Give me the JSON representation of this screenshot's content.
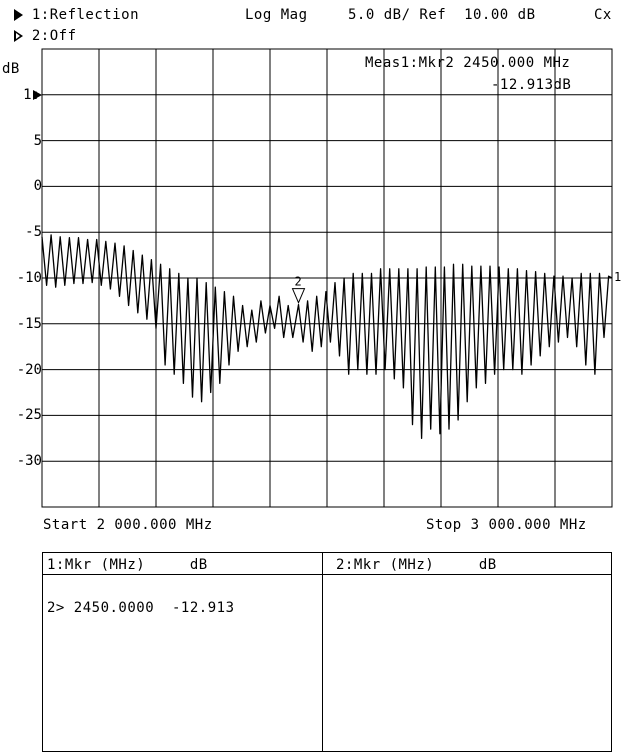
{
  "header": {
    "ch1": "1:Reflection",
    "ch2": "2:Off",
    "format": "Log Mag",
    "scale": "5.0 dB/ Ref  10.00 dB",
    "cx": "Cx"
  },
  "axis": {
    "unit": "dB",
    "ref_label": "1:",
    "ticks": [
      "5",
      "0",
      "-5",
      "-10",
      "-15",
      "-20",
      "-25",
      "-30"
    ]
  },
  "measurement": {
    "line1": "Meas1:Mkr2 2450.000 MHz",
    "line2": "-12.913dB"
  },
  "sweep": {
    "start": "Start 2 000.000 MHz",
    "stop": "Stop 3 000.000 MHz"
  },
  "marker_table": {
    "ch1_header": "1:Mkr (MHz)     dB",
    "ch2_header": "2:Mkr (MHz)     dB",
    "ch1_rows": [
      "2> 2450.0000  -12.913"
    ]
  },
  "chart_data": {
    "type": "line",
    "xlim": [
      2000,
      3000
    ],
    "ylim": [
      -35,
      15
    ],
    "reference_level": 10,
    "grid": true,
    "marker": {
      "label": "2",
      "x": 2450,
      "y": -12.913
    },
    "end_label": "1",
    "series": [
      {
        "values": [
          [
            2000,
            -5.5
          ],
          [
            2008,
            -10.8
          ],
          [
            2016,
            -5.3
          ],
          [
            2024,
            -11.0
          ],
          [
            2032,
            -5.5
          ],
          [
            2040,
            -10.8
          ],
          [
            2048,
            -5.6
          ],
          [
            2056,
            -10.6
          ],
          [
            2064,
            -5.6
          ],
          [
            2072,
            -10.6
          ],
          [
            2080,
            -5.8
          ],
          [
            2088,
            -10.5
          ],
          [
            2096,
            -5.8
          ],
          [
            2104,
            -10.8
          ],
          [
            2112,
            -6.0
          ],
          [
            2120,
            -11.2
          ],
          [
            2128,
            -6.2
          ],
          [
            2136,
            -12.0
          ],
          [
            2144,
            -6.5
          ],
          [
            2152,
            -13.0
          ],
          [
            2160,
            -7.0
          ],
          [
            2168,
            -13.8
          ],
          [
            2176,
            -7.5
          ],
          [
            2184,
            -14.5
          ],
          [
            2192,
            -8.0
          ],
          [
            2200,
            -15.5
          ],
          [
            2208,
            -8.5
          ],
          [
            2216,
            -19.5
          ],
          [
            2224,
            -9.0
          ],
          [
            2232,
            -20.5
          ],
          [
            2240,
            -9.5
          ],
          [
            2248,
            -21.5
          ],
          [
            2256,
            -10.0
          ],
          [
            2264,
            -23.0
          ],
          [
            2272,
            -10.0
          ],
          [
            2280,
            -23.5
          ],
          [
            2288,
            -10.5
          ],
          [
            2296,
            -22.5
          ],
          [
            2304,
            -11.0
          ],
          [
            2312,
            -21.5
          ],
          [
            2320,
            -11.5
          ],
          [
            2328,
            -19.5
          ],
          [
            2336,
            -12.0
          ],
          [
            2344,
            -18.0
          ],
          [
            2352,
            -13.0
          ],
          [
            2360,
            -17.5
          ],
          [
            2368,
            -13.5
          ],
          [
            2376,
            -17.0
          ],
          [
            2384,
            -12.5
          ],
          [
            2392,
            -16.0
          ],
          [
            2400,
            -13.0
          ],
          [
            2408,
            -15.5
          ],
          [
            2416,
            -12.0
          ],
          [
            2424,
            -16.5
          ],
          [
            2432,
            -13.0
          ],
          [
            2440,
            -16.5
          ],
          [
            2450,
            -12.9
          ],
          [
            2458,
            -17.0
          ],
          [
            2466,
            -12.5
          ],
          [
            2474,
            -18.0
          ],
          [
            2482,
            -12.0
          ],
          [
            2490,
            -17.5
          ],
          [
            2498,
            -11.5
          ],
          [
            2506,
            -17.0
          ],
          [
            2514,
            -10.5
          ],
          [
            2522,
            -18.5
          ],
          [
            2530,
            -10.0
          ],
          [
            2538,
            -20.5
          ],
          [
            2546,
            -9.5
          ],
          [
            2554,
            -20.0
          ],
          [
            2562,
            -9.5
          ],
          [
            2570,
            -20.5
          ],
          [
            2578,
            -9.5
          ],
          [
            2586,
            -20.5
          ],
          [
            2594,
            -9.0
          ],
          [
            2602,
            -20.0
          ],
          [
            2610,
            -9.0
          ],
          [
            2618,
            -21.0
          ],
          [
            2626,
            -9.0
          ],
          [
            2634,
            -22.0
          ],
          [
            2642,
            -9.0
          ],
          [
            2650,
            -26.0
          ],
          [
            2658,
            -9.0
          ],
          [
            2666,
            -27.5
          ],
          [
            2674,
            -8.8
          ],
          [
            2682,
            -26.5
          ],
          [
            2690,
            -8.8
          ],
          [
            2698,
            -27.0
          ],
          [
            2706,
            -8.8
          ],
          [
            2714,
            -26.5
          ],
          [
            2722,
            -8.5
          ],
          [
            2730,
            -25.5
          ],
          [
            2738,
            -8.5
          ],
          [
            2746,
            -23.5
          ],
          [
            2754,
            -8.7
          ],
          [
            2762,
            -22.0
          ],
          [
            2770,
            -8.7
          ],
          [
            2778,
            -21.5
          ],
          [
            2786,
            -8.7
          ],
          [
            2794,
            -20.5
          ],
          [
            2802,
            -8.8
          ],
          [
            2810,
            -20.0
          ],
          [
            2818,
            -9.0
          ],
          [
            2826,
            -20.0
          ],
          [
            2834,
            -9.0
          ],
          [
            2842,
            -20.5
          ],
          [
            2850,
            -9.2
          ],
          [
            2858,
            -19.5
          ],
          [
            2866,
            -9.3
          ],
          [
            2874,
            -18.5
          ],
          [
            2882,
            -9.5
          ],
          [
            2890,
            -17.5
          ],
          [
            2898,
            -9.8
          ],
          [
            2906,
            -17.0
          ],
          [
            2914,
            -9.8
          ],
          [
            2922,
            -16.5
          ],
          [
            2930,
            -10.0
          ],
          [
            2938,
            -17.5
          ],
          [
            2946,
            -9.5
          ],
          [
            2954,
            -19.5
          ],
          [
            2962,
            -9.5
          ],
          [
            2970,
            -20.5
          ],
          [
            2978,
            -9.5
          ],
          [
            2986,
            -16.5
          ],
          [
            2994,
            -9.8
          ],
          [
            3000,
            -10.0
          ]
        ]
      }
    ]
  }
}
